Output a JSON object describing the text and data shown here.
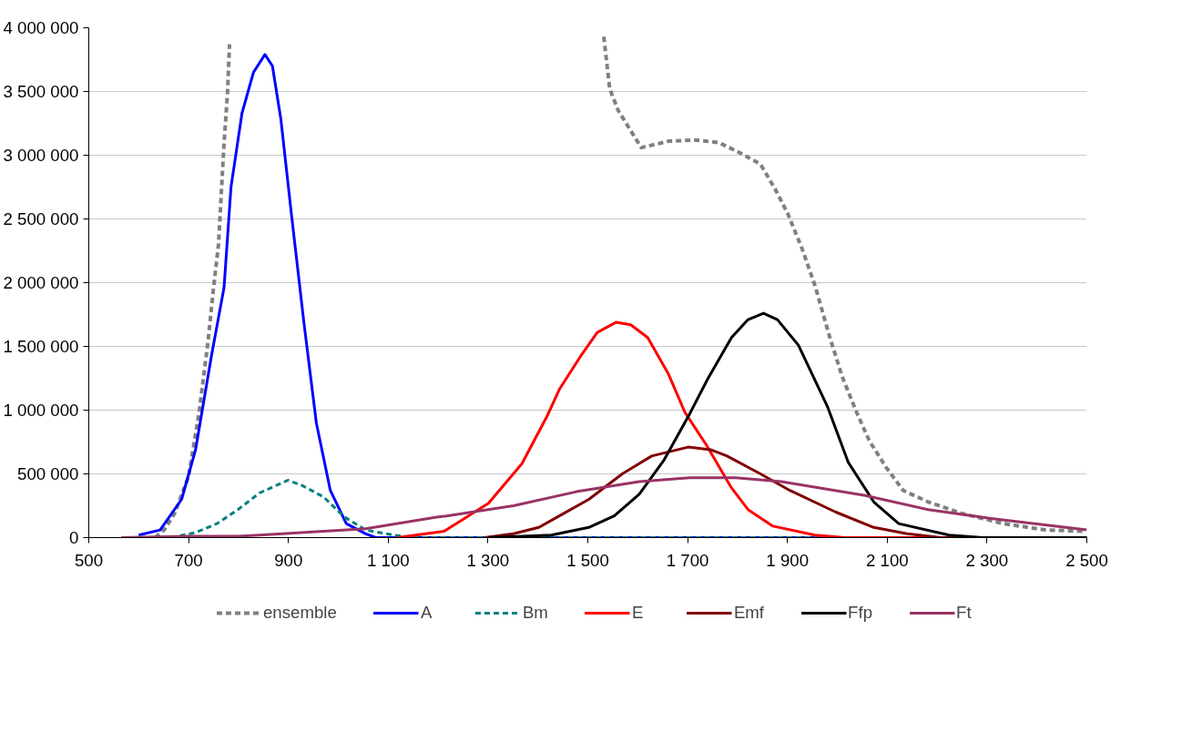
{
  "chart_data": {
    "type": "line",
    "xlim": [
      500,
      2500
    ],
    "ylim": [
      0,
      4000000
    ],
    "xticks": [
      500,
      700,
      900,
      {
        "value": 1100,
        "label": "1 100"
      },
      {
        "value": 1300,
        "label": "1 300"
      },
      {
        "value": 1500,
        "label": "1 500"
      },
      {
        "value": 1700,
        "label": "1 700"
      },
      {
        "value": 1900,
        "label": "1 900"
      },
      {
        "value": 2100,
        "label": "2 100"
      },
      {
        "value": 2300,
        "label": "2 300"
      },
      {
        "value": 2500,
        "label": "2 500"
      }
    ],
    "yticks": [
      0,
      {
        "value": 500000,
        "label": "500 000"
      },
      {
        "value": 1000000,
        "label": "1 000 000"
      },
      {
        "value": 1500000,
        "label": "1 500 000"
      },
      {
        "value": 2000000,
        "label": "2 000 000"
      },
      {
        "value": 2500000,
        "label": "2 500 000"
      },
      {
        "value": 3000000,
        "label": "3 000 000"
      },
      {
        "value": 3500000,
        "label": "3 500 000"
      },
      {
        "value": 4000000,
        "label": "4 000 000"
      }
    ],
    "grid": "y",
    "legend": "bottom",
    "marker": "none",
    "series": [
      {
        "name": "ensemble",
        "color": "#808080",
        "line_style": "dashed",
        "x": [
          633,
          651,
          672,
          700,
          721,
          739,
          750,
          760,
          771,
          778,
          782,
          1000,
          1532,
          1544,
          1561,
          1607,
          1662,
          1712,
          1762,
          1804,
          1846,
          1876,
          1901,
          1930,
          1955,
          1985,
          2010,
          2039,
          2064,
          2098,
          2132,
          2182,
          2249,
          2333,
          2417,
          2492
        ],
        "values": [
          0,
          60000,
          190000,
          480000,
          980000,
          1540000,
          1960000,
          2300000,
          3090000,
          3490000,
          3870000,
          null,
          3930000,
          3520000,
          3350000,
          3060000,
          3110000,
          3120000,
          3100000,
          3020000,
          2930000,
          2730000,
          2540000,
          2260000,
          1980000,
          1570000,
          1260000,
          980000,
          760000,
          550000,
          370000,
          280000,
          190000,
          110000,
          60000,
          50000
        ]
      },
      {
        "name": "A",
        "color": "#0000ff",
        "line_style": "solid",
        "x": [
          600,
          643,
          686,
          714,
          746,
          771,
          785,
          807,
          830,
          853,
          868,
          885,
          906,
          931,
          956,
          984,
          1016,
          1055,
          1075,
          1500,
          2000,
          2500
        ],
        "values": [
          20000,
          60000,
          300000,
          690000,
          1430000,
          1960000,
          2750000,
          3330000,
          3650000,
          3790000,
          3700000,
          3280000,
          2540000,
          1690000,
          900000,
          370000,
          110000,
          30000,
          0,
          0,
          0,
          0
        ]
      },
      {
        "name": "Bm",
        "color": "#008080",
        "line_style": "dashed",
        "x": [
          665,
          714,
          757,
          799,
          842,
          899,
          927,
          970,
          1013,
          1055,
          1111,
          1150,
          1500,
          2000,
          2500
        ],
        "values": [
          0,
          40000,
          110000,
          220000,
          350000,
          450000,
          410000,
          320000,
          160000,
          60000,
          20000,
          0,
          0,
          0,
          0
        ]
      },
      {
        "name": "E",
        "color": "#ff0000",
        "line_style": "solid",
        "x": [
          1119,
          1212,
          1301,
          1368,
          1418,
          1444,
          1485,
          1519,
          1557,
          1586,
          1620,
          1662,
          1695,
          1737,
          1788,
          1821,
          1871,
          1955,
          2014,
          2500
        ],
        "values": [
          0,
          50000,
          270000,
          580000,
          950000,
          1170000,
          1420000,
          1610000,
          1690000,
          1670000,
          1570000,
          1280000,
          980000,
          730000,
          390000,
          220000,
          90000,
          20000,
          0,
          0
        ]
      },
      {
        "name": "Emf",
        "color": "#800000",
        "line_style": "solid",
        "x": [
          1293,
          1351,
          1402,
          1452,
          1502,
          1569,
          1628,
          1701,
          1746,
          1779,
          1846,
          1905,
          1997,
          2073,
          2140,
          2207,
          2500
        ],
        "values": [
          0,
          30000,
          80000,
          190000,
          300000,
          500000,
          640000,
          710000,
          690000,
          640000,
          500000,
          370000,
          200000,
          80000,
          30000,
          0,
          0
        ]
      },
      {
        "name": "Ffp",
        "color": "#000000",
        "line_style": "solid",
        "x": [
          1301,
          1427,
          1502,
          1553,
          1603,
          1653,
          1704,
          1741,
          1788,
          1821,
          1852,
          1880,
          1922,
          1980,
          2022,
          2073,
          2123,
          2224,
          2291,
          2500
        ],
        "values": [
          0,
          20000,
          80000,
          170000,
          340000,
          610000,
          970000,
          1250000,
          1570000,
          1710000,
          1760000,
          1710000,
          1510000,
          1030000,
          590000,
          280000,
          110000,
          20000,
          0,
          0
        ]
      },
      {
        "name": "Ft",
        "color": "#993366",
        "line_style": "solid",
        "x": [
          565,
          700,
          800,
          842,
          1055,
          1197,
          1217,
          1351,
          1477,
          1603,
          1704,
          1796,
          1888,
          2056,
          2182,
          2308,
          2500
        ],
        "values": [
          0,
          10000,
          10000,
          20000,
          70000,
          160000,
          170000,
          250000,
          360000,
          440000,
          470000,
          470000,
          440000,
          330000,
          220000,
          150000,
          60000
        ]
      }
    ]
  }
}
